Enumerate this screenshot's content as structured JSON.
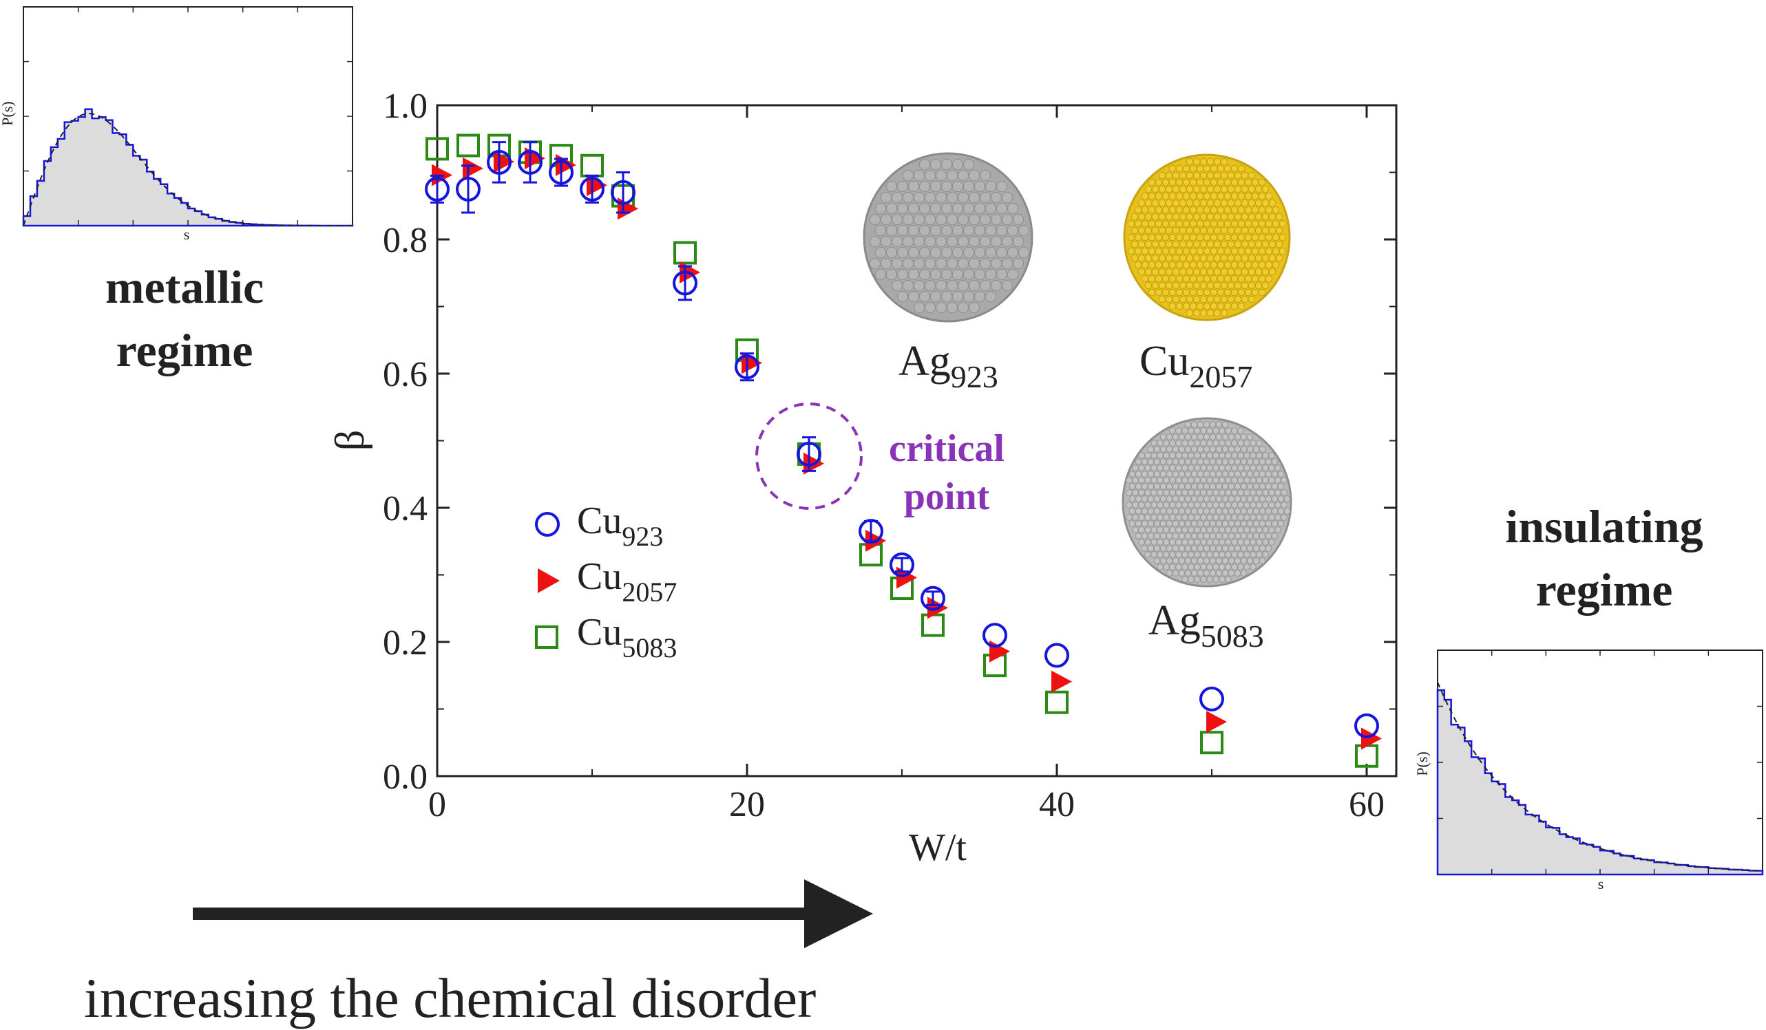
{
  "left_panel": {
    "ylabel": "P(s)",
    "xlabel": "s",
    "caption_line1": "metallic",
    "caption_line2": "regime"
  },
  "right_panel": {
    "ylabel": "P(s)",
    "xlabel": "s",
    "caption_line1": "insulating",
    "caption_line2": "regime"
  },
  "annotation": {
    "line1": "critical",
    "line2": "point",
    "color": "#8a33b8"
  },
  "arrow_label": "increasing the chemical disorder",
  "clusters": [
    {
      "base": "Ag",
      "sub": "923",
      "color": "#a9a9a9"
    },
    {
      "base": "Cu",
      "sub": "2057",
      "color": "#e8c21a"
    },
    {
      "base": "Ag",
      "sub": "5083",
      "color": "#b8b8b8"
    }
  ],
  "chart_data": {
    "type": "scatter",
    "xlabel": "W/t",
    "ylabel": "β",
    "xlim": [
      0,
      62
    ],
    "ylim": [
      0,
      1.0
    ],
    "xticks": [
      0,
      20,
      40,
      60
    ],
    "yticks": [
      0.0,
      0.2,
      0.4,
      0.6,
      0.8,
      1.0
    ],
    "ytick_labels": [
      "0.0",
      "0.2",
      "0.4",
      "0.6",
      "0.8",
      "1.0"
    ],
    "grid": false,
    "legend_placement": "lower-left",
    "series": [
      {
        "name": "Cu",
        "name_sub": "923",
        "marker": "open-circle",
        "color": "#1515dd",
        "x": [
          0,
          2,
          4,
          6,
          8,
          10,
          12,
          16,
          20,
          24,
          28,
          30,
          32,
          36,
          40,
          50,
          60
        ],
        "y": [
          0.875,
          0.875,
          0.915,
          0.915,
          0.9,
          0.875,
          0.87,
          0.735,
          0.61,
          0.48,
          0.365,
          0.315,
          0.265,
          0.21,
          0.18,
          0.115,
          0.075
        ],
        "err": [
          0.02,
          0.035,
          0.03,
          0.03,
          0.02,
          0.02,
          0.03,
          0.025,
          0.02,
          0.025,
          0.015,
          0.01,
          0.01,
          0,
          0,
          0,
          0
        ]
      },
      {
        "name": "Cu",
        "name_sub": "2057",
        "marker": "filled-right-triangle",
        "color": "#ee1111",
        "x": [
          0,
          2,
          4,
          6,
          8,
          10,
          12,
          16,
          20,
          24,
          28,
          30,
          32,
          36,
          40,
          50,
          60
        ],
        "y": [
          0.9,
          0.91,
          0.92,
          0.925,
          0.915,
          0.885,
          0.85,
          0.755,
          0.62,
          0.47,
          0.355,
          0.3,
          0.255,
          0.19,
          0.145,
          0.085,
          0.06
        ]
      },
      {
        "name": "Cu",
        "name_sub": "5083",
        "marker": "open-square",
        "color": "#2a8a14",
        "x": [
          0,
          2,
          4,
          6,
          8,
          10,
          12,
          16,
          20,
          24,
          28,
          30,
          32,
          36,
          40,
          50,
          60
        ],
        "y": [
          0.935,
          0.94,
          0.94,
          0.93,
          0.925,
          0.91,
          0.865,
          0.78,
          0.635,
          0.48,
          0.33,
          0.28,
          0.225,
          0.165,
          0.11,
          0.05,
          0.03
        ]
      }
    ]
  },
  "inset_left": {
    "type": "histogram",
    "distribution": "Wigner-Dyson (metallic)",
    "fill": "#dcdcdc",
    "line": "#1515dd"
  },
  "inset_right": {
    "type": "histogram",
    "distribution": "Poisson (insulating)",
    "fill": "#dcdcdc",
    "line": "#1515dd"
  }
}
